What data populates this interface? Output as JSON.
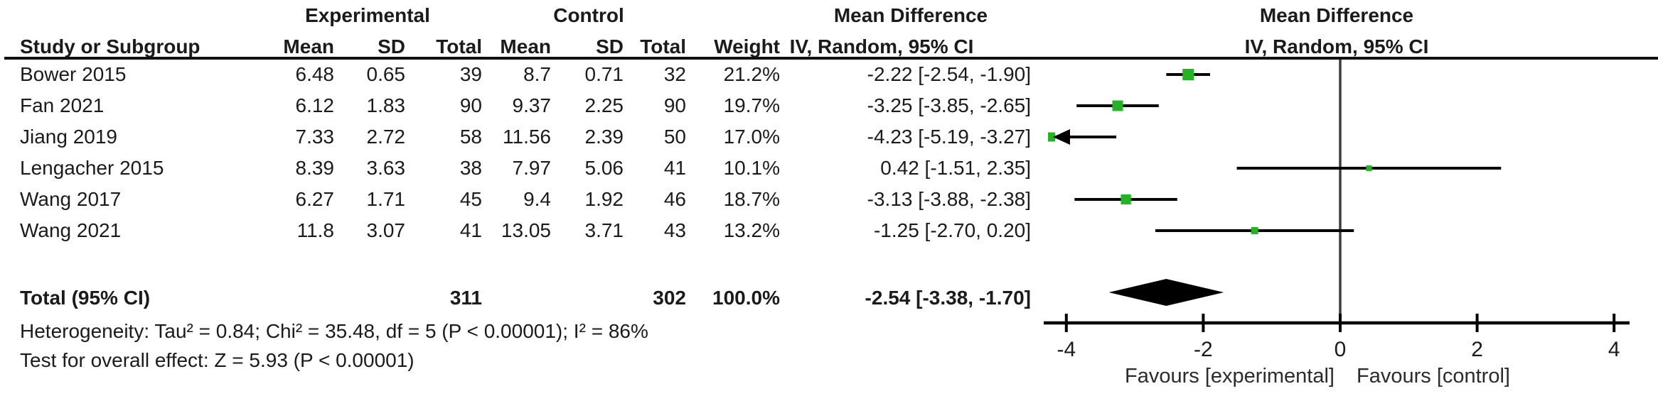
{
  "table": {
    "group_headers": {
      "experimental": "Experimental",
      "control": "Control"
    },
    "col_headers": {
      "study": "Study or Subgroup",
      "e_mean": "Mean",
      "e_sd": "SD",
      "e_total": "Total",
      "c_mean": "Mean",
      "c_sd": "SD",
      "c_total": "Total",
      "weight": "Weight",
      "md_line1": "Mean Difference",
      "md_line2": "IV, Random, 95% CI"
    },
    "rows": [
      {
        "study": "Bower 2015",
        "e_mean": "6.48",
        "e_sd": "0.65",
        "e_total": "39",
        "c_mean": "8.7",
        "c_sd": "0.71",
        "c_total": "32",
        "weight": "21.2%",
        "md_ci": "-2.22 [-2.54, -1.90]"
      },
      {
        "study": "Fan 2021",
        "e_mean": "6.12",
        "e_sd": "1.83",
        "e_total": "90",
        "c_mean": "9.37",
        "c_sd": "2.25",
        "c_total": "90",
        "weight": "19.7%",
        "md_ci": "-3.25 [-3.85, -2.65]"
      },
      {
        "study": "Jiang 2019",
        "e_mean": "7.33",
        "e_sd": "2.72",
        "e_total": "58",
        "c_mean": "11.56",
        "c_sd": "2.39",
        "c_total": "50",
        "weight": "17.0%",
        "md_ci": "-4.23 [-5.19, -3.27]"
      },
      {
        "study": "Lengacher 2015",
        "e_mean": "8.39",
        "e_sd": "3.63",
        "e_total": "38",
        "c_mean": "7.97",
        "c_sd": "5.06",
        "c_total": "41",
        "weight": "10.1%",
        "md_ci": "0.42 [-1.51, 2.35]"
      },
      {
        "study": "Wang 2017",
        "e_mean": "6.27",
        "e_sd": "1.71",
        "e_total": "45",
        "c_mean": "9.4",
        "c_sd": "1.92",
        "c_total": "46",
        "weight": "18.7%",
        "md_ci": "-3.13 [-3.88, -2.38]"
      },
      {
        "study": "Wang 2021",
        "e_mean": "11.8",
        "e_sd": "3.07",
        "e_total": "41",
        "c_mean": "13.05",
        "c_sd": "3.71",
        "c_total": "43",
        "weight": "13.2%",
        "md_ci": "-1.25 [-2.70, 0.20]"
      }
    ],
    "total_row": {
      "label": "Total (95% CI)",
      "e_total": "311",
      "c_total": "302",
      "weight": "100.0%",
      "md_ci": "-2.54 [-3.38, -1.70]"
    },
    "footnotes": [
      "Heterogeneity: Tau² = 0.84; Chi² = 35.48, df = 5 (P < 0.00001); I² = 86%",
      "Test for overall effect: Z = 5.93 (P < 0.00001)"
    ]
  },
  "plot_headers": {
    "line1": "Mean Difference",
    "line2": "IV, Random, 95% CI"
  },
  "chart_data": {
    "type": "forest",
    "title": "Mean Difference — IV, Random, 95% CI",
    "x_ticks": [
      -4,
      -2,
      0,
      2,
      4
    ],
    "xlim_drawn": [
      -4.33,
      4.22
    ],
    "studies": [
      {
        "label": "Bower 2015",
        "md": -2.22,
        "ci": [
          -2.54,
          -1.9
        ],
        "weight_pct": 21.2
      },
      {
        "label": "Fan 2021",
        "md": -3.25,
        "ci": [
          -3.85,
          -2.65
        ],
        "weight_pct": 19.7
      },
      {
        "label": "Jiang 2019",
        "md": -4.23,
        "ci": [
          -5.19,
          -3.27
        ],
        "weight_pct": 17.0
      },
      {
        "label": "Lengacher 2015",
        "md": 0.42,
        "ci": [
          -1.51,
          2.35
        ],
        "weight_pct": 10.1
      },
      {
        "label": "Wang 2017",
        "md": -3.13,
        "ci": [
          -3.88,
          -2.38
        ],
        "weight_pct": 18.7
      },
      {
        "label": "Wang 2021",
        "md": -1.25,
        "ci": [
          -2.7,
          0.2
        ],
        "weight_pct": 13.2
      }
    ],
    "total": {
      "label": "Total (95% CI)",
      "md": -2.54,
      "ci": [
        -3.38,
        -1.7
      ],
      "weight_pct": 100.0
    },
    "favours_left": "Favours [experimental]",
    "favours_right": "Favours [control]",
    "colors": {
      "marker": "#22b422",
      "diamond": "#000000",
      "axis": "#000000",
      "zero_line": "#3d3d3d",
      "text": "#1b1b1b"
    }
  }
}
